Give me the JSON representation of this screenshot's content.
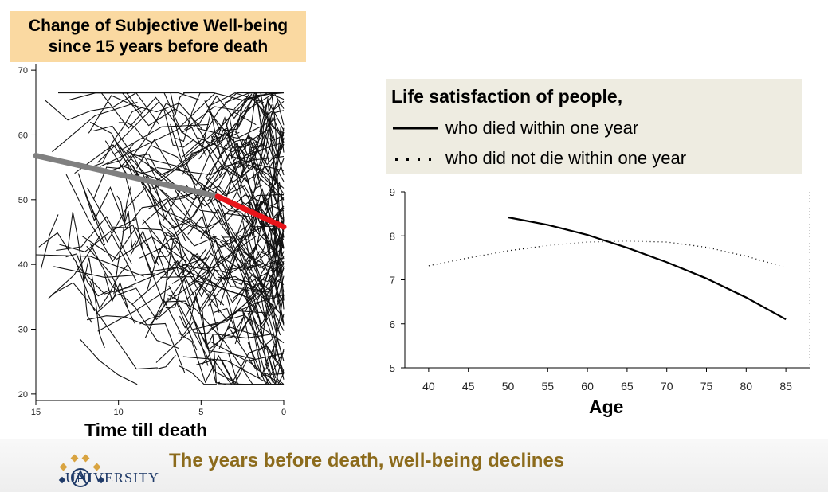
{
  "left_panel": {
    "title_line1": "Change of Subjective Well-being",
    "title_line2": "since 15 years before death",
    "xlabel": "Time till death"
  },
  "legend": {
    "heading": "Life satisfaction of people,",
    "solid_label": "who died within one year",
    "dotted_label": "who did not die within one year"
  },
  "right_panel": {
    "xlabel": "Age"
  },
  "footer": {
    "text": "The years before death, well-being declines",
    "logo_text": "UNIVERSITY"
  },
  "colors": {
    "title_box": "#fad9a1",
    "legend_box": "#eeece1",
    "trend_early": "#808080",
    "trend_late": "#e8141a",
    "footer_text": "#8c6b1c",
    "logo_gold": "#d9a441",
    "logo_blue": "#1f3a68"
  },
  "chart_data": [
    {
      "type": "line",
      "title": "Change of Subjective Well-being since 15 years before death",
      "xlabel": "Time till death",
      "ylabel": "",
      "xlim": [
        15,
        0
      ],
      "ylim": [
        19,
        71
      ],
      "xticks": [
        15,
        10,
        5,
        0
      ],
      "yticks": [
        20,
        30,
        40,
        50,
        60,
        70
      ],
      "series": [
        {
          "name": "trend_early",
          "color": "#808080",
          "x": [
            15,
            4
          ],
          "y": [
            56.8,
            50.5
          ]
        },
        {
          "name": "trend_late",
          "color": "#e8141a",
          "x": [
            4,
            0
          ],
          "y": [
            50.5,
            45.8
          ]
        }
      ],
      "spaghetti_note": "many individual trajectories"
    },
    {
      "type": "line",
      "title": "Life satisfaction of people,",
      "xlabel": "Age",
      "ylabel": "",
      "xlim": [
        37,
        88
      ],
      "ylim": [
        5,
        9
      ],
      "xticks": [
        40,
        45,
        50,
        55,
        60,
        65,
        70,
        75,
        80,
        85
      ],
      "yticks": [
        5,
        6,
        7,
        8,
        9
      ],
      "series": [
        {
          "name": "who died within one year",
          "style": "solid",
          "x": [
            50,
            55,
            60,
            65,
            70,
            75,
            80,
            85
          ],
          "y": [
            8.42,
            8.25,
            8.02,
            7.73,
            7.4,
            7.03,
            6.6,
            6.1
          ]
        },
        {
          "name": "who did not die within one year",
          "style": "dotted",
          "x": [
            40,
            45,
            50,
            55,
            60,
            65,
            70,
            75,
            80,
            85
          ],
          "y": [
            7.32,
            7.5,
            7.66,
            7.78,
            7.86,
            7.88,
            7.86,
            7.74,
            7.54,
            7.28
          ]
        }
      ]
    }
  ]
}
